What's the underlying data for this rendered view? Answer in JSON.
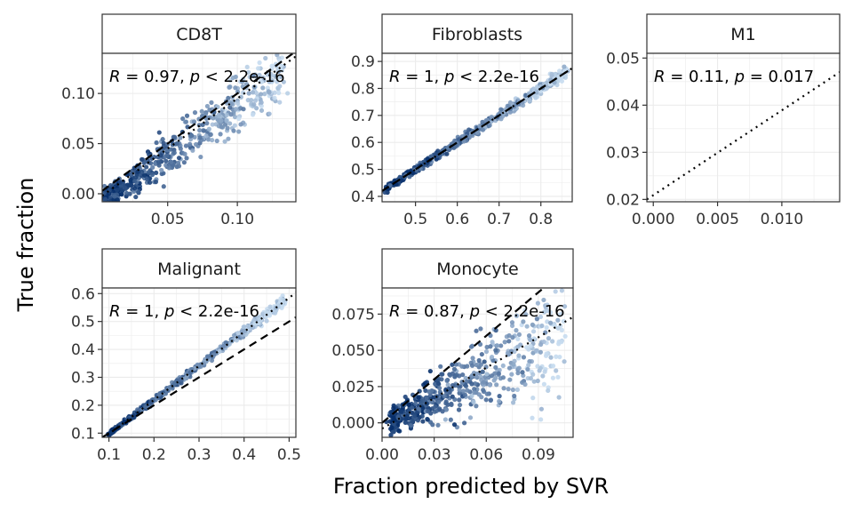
{
  "axes": {
    "xlabel": "Fraction predicted by SVR",
    "ylabel": "True fraction"
  },
  "colors": {
    "point_low": "#c6dbef",
    "point_high": "#08306b",
    "identity_line": "#000000",
    "fit_line": "#000000",
    "grid": "#ebebeb",
    "panel_border": "#333333"
  },
  "chart_data": [
    {
      "type": "scatter",
      "panel": "CD8T",
      "xlim": [
        0.003,
        0.142
      ],
      "ylim": [
        -0.008,
        0.14
      ],
      "xticks": [
        0.05,
        0.1
      ],
      "xtick_labels": [
        "0.05",
        "0.10"
      ],
      "yticks": [
        0.0,
        0.05,
        0.1
      ],
      "ytick_labels": [
        "0.00",
        "0.05",
        "0.10"
      ],
      "annotation": {
        "R": "0.97",
        "p": "2.2e-16"
      },
      "n_points": 520,
      "trend": {
        "x": [
          0.005,
          0.135
        ],
        "a": -0.012,
        "b": 1.0,
        "noise": 0.011
      },
      "identity": true,
      "fit": {
        "a": -0.005,
        "b": 1.0
      }
    },
    {
      "type": "scatter",
      "panel": "Fibroblasts",
      "xlim": [
        0.42,
        0.875
      ],
      "ylim": [
        0.38,
        0.93
      ],
      "xticks": [
        0.5,
        0.6,
        0.7,
        0.8
      ],
      "xtick_labels": [
        "0.5",
        "0.6",
        "0.7",
        "0.8"
      ],
      "yticks": [
        0.4,
        0.5,
        0.6,
        0.7,
        0.8,
        0.9
      ],
      "ytick_labels": [
        "0.4",
        "0.5",
        "0.6",
        "0.7",
        "0.8",
        "0.9"
      ],
      "annotation": {
        "R": "1",
        "p": "2.2e-16"
      },
      "n_points": 520,
      "trend": {
        "x": [
          0.43,
          0.86
        ],
        "a": 0.0,
        "b": 1.0,
        "noise": 0.008
      },
      "identity": true,
      "fit": {
        "a": 0.0,
        "b": 1.0
      }
    },
    {
      "type": "scatter",
      "panel": "M1",
      "xlim": [
        -0.0005,
        0.0145
      ],
      "ylim": [
        0.0195,
        0.051
      ],
      "xticks": [
        0.0,
        0.005,
        0.01
      ],
      "xtick_labels": [
        "0.000",
        "0.005",
        "0.010"
      ],
      "yticks": [
        0.02,
        0.03,
        0.04,
        0.05
      ],
      "ytick_labels": [
        "0.02",
        "0.03",
        "0.04",
        "0.05"
      ],
      "annotation": {
        "R": "0.11",
        "p": "0.017"
      },
      "n_points": 0,
      "identity": false,
      "fit": {
        "a": 0.0209,
        "b": 1.8
      }
    },
    {
      "type": "scatter",
      "panel": "Malignant",
      "xlim": [
        0.085,
        0.515
      ],
      "ylim": [
        0.085,
        0.62
      ],
      "xticks": [
        0.1,
        0.2,
        0.3,
        0.4,
        0.5
      ],
      "xtick_labels": [
        "0.1",
        "0.2",
        "0.3",
        "0.4",
        "0.5"
      ],
      "yticks": [
        0.1,
        0.2,
        0.3,
        0.4,
        0.5,
        0.6
      ],
      "ytick_labels": [
        "0.1",
        "0.2",
        "0.3",
        "0.4",
        "0.5",
        "0.6"
      ],
      "annotation": {
        "R": "1",
        "p": "2.2e-16"
      },
      "n_points": 520,
      "trend": {
        "x": [
          0.1,
          0.49
        ],
        "a": -0.025,
        "b": 1.22,
        "noise": 0.006
      },
      "identity": true,
      "fit": {
        "a": -0.025,
        "b": 1.22
      }
    },
    {
      "type": "scatter",
      "panel": "Monocyte",
      "xlim": [
        0.0,
        0.11
      ],
      "ylim": [
        -0.01,
        0.093
      ],
      "xticks": [
        0.0,
        0.03,
        0.06,
        0.09
      ],
      "xtick_labels": [
        "0.00",
        "0.03",
        "0.06",
        "0.09"
      ],
      "yticks": [
        0.0,
        0.025,
        0.05,
        0.075
      ],
      "ytick_labels": [
        "0.000",
        "0.025",
        "0.050",
        "0.075"
      ],
      "annotation": {
        "R": "0.87",
        "p": "2.2e-16"
      },
      "n_points": 560,
      "trend": {
        "x": [
          0.005,
          0.105
        ],
        "a": -0.002,
        "b": 0.6,
        "noise": 0.011
      },
      "identity": true,
      "fit": {
        "a": -0.004,
        "b": 0.7
      }
    }
  ]
}
